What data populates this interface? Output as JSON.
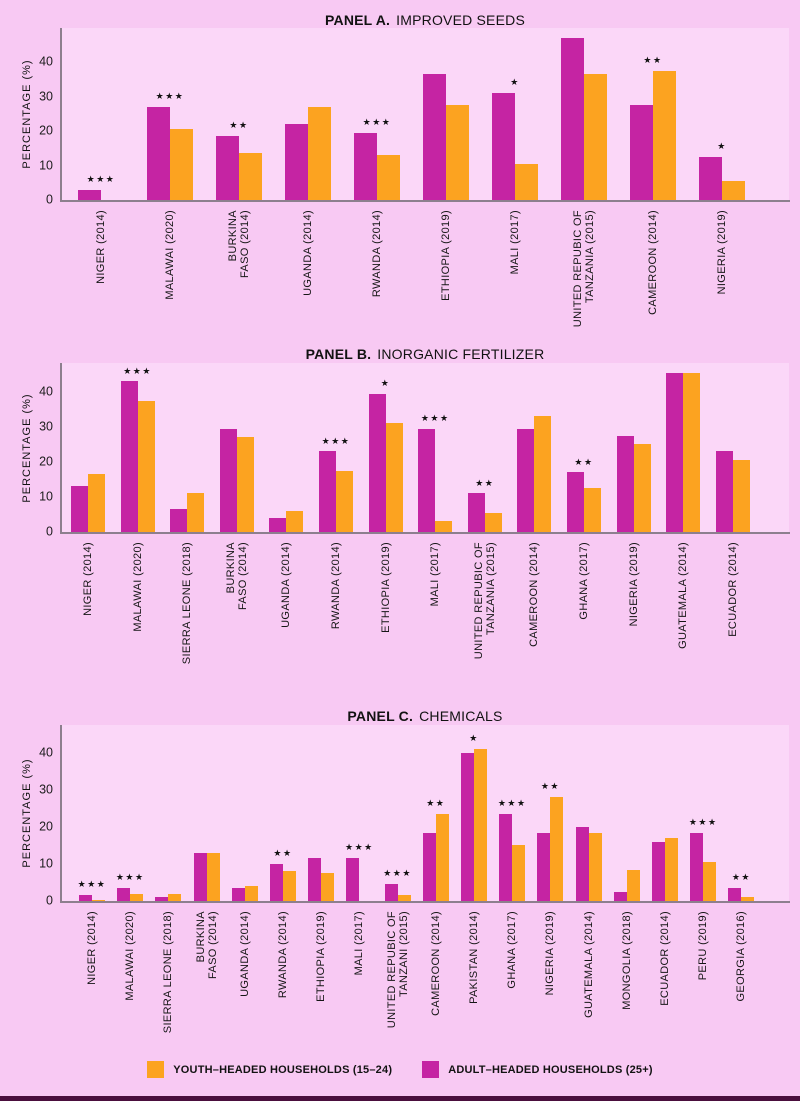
{
  "figure": {
    "background_color": "#f8c9f3",
    "plot_background_color": "#fbd7f8",
    "axis_color": "#8d7f8e",
    "bottom_band_color": "#4a0e3d",
    "bar_colors": {
      "adult": "#c524a3",
      "youth": "#fca320"
    },
    "ylabel": "PERCENTAGE (%)",
    "yticks": [
      "0",
      "10",
      "20",
      "30",
      "40"
    ]
  },
  "legend": {
    "items": [
      {
        "id": "youth",
        "label": "YOUTH–HEADED HOUSEHOLDS (15–24)",
        "color": "#fca320"
      },
      {
        "id": "adult",
        "label": "ADULT–HEADED HOUSEHOLDS (25+)",
        "color": "#c524a3"
      }
    ]
  },
  "chart_data": [
    {
      "type": "bar",
      "title_prefix": "PANEL A.",
      "title": "IMPROVED SEEDS",
      "ylabel": "PERCENTAGE (%)",
      "ylim": [
        0,
        50
      ],
      "grid": false,
      "legend_position": "none",
      "categories": [
        "NIGER (2014)",
        "MALAWAI (2020)",
        "BURKINA\nFASO (2014)",
        "UGANDA (2014)",
        "RWANDA (2014)",
        "ETHIOPIA (2019)",
        "MALI (2017)",
        "UNITED REPUBIC OF\nTANZANIA (2015)",
        "CAMEROON (2014)",
        "NIGERIA (2019)"
      ],
      "series": [
        {
          "name": "ADULT-HEADED HOUSEHOLDS (25+)",
          "color": "#c524a3",
          "values": [
            3,
            27,
            18.5,
            22,
            19.5,
            36.5,
            31,
            47,
            27.5,
            12.5
          ]
        },
        {
          "name": "YOUTH-HEADED HOUSEHOLDS (15-24)",
          "color": "#fca320",
          "values": [
            0,
            20.5,
            13.5,
            27,
            13,
            27.5,
            10.5,
            36.5,
            37.5,
            5.5
          ]
        }
      ],
      "significance": [
        "***",
        "***",
        "**",
        "",
        "***",
        "",
        "*",
        "",
        "**",
        "*"
      ]
    },
    {
      "type": "bar",
      "title_prefix": "PANEL B.",
      "title": "INORGANIC FERTILIZER",
      "ylabel": "PERCENTAGE (%)",
      "ylim": [
        0,
        48
      ],
      "grid": false,
      "legend_position": "none",
      "categories": [
        "NIGER (2014)",
        "MALAWAI (2020)",
        "SIERRA LEONE (2018)",
        "BURKINA\nFASO (2014)",
        "UGANDA (2014)",
        "RWANDA (2014)",
        "ETHIOPIA (2019)",
        "MALI (2017)",
        "UNITED REPUBIC OF\nTANZANIA (2015)",
        "CAMEROON (2014)",
        "GHANA (2017)",
        "NIGERIA (2019)",
        "GUATEMALA (2014)",
        "ECUADOR (2014)"
      ],
      "series": [
        {
          "name": "ADULT-HEADED HOUSEHOLDS (25+)",
          "color": "#c524a3",
          "values": [
            13,
            43,
            6.5,
            29.5,
            4,
            23,
            39.5,
            29.5,
            11,
            29.5,
            17,
            27.5,
            45.5,
            23
          ]
        },
        {
          "name": "YOUTH-HEADED HOUSEHOLDS (15-24)",
          "color": "#fca320",
          "values": [
            16.5,
            37.5,
            11,
            27,
            6,
            17.5,
            31,
            3,
            5.5,
            33,
            12.5,
            25,
            45.5,
            20.5
          ]
        }
      ],
      "significance": [
        "",
        "***",
        "",
        "",
        "",
        "***",
        "*",
        "***",
        "**",
        "",
        "**",
        "",
        "",
        ""
      ]
    },
    {
      "type": "bar",
      "title_prefix": "PANEL C.",
      "title": "CHEMICALS",
      "ylabel": "PERCENTAGE (%)",
      "ylim": [
        0,
        48
      ],
      "grid": false,
      "legend_position": "bottom",
      "categories": [
        "NIGER (2014)",
        "MALAWAI (2020)",
        "SIERRA LEONE (2018)",
        "BURKINA\nFASO (2014)",
        "UGANDA (2014)",
        "RWANDA (2014)",
        "ETHIOPIA (2019)",
        "MALI (2017)",
        "UNITED REPUBIC OF\nTANZANI (2015)",
        "CAMEROON (2014)",
        "PAKISTAN (2014)",
        "GHANA (2017)",
        "NIGERIA (2019)",
        "GUATEMALA (2014)",
        "MONGOLIA (2018)",
        "ECUADOR (2014)",
        "PERU (2019)",
        "GEORGIA (2016)"
      ],
      "series": [
        {
          "name": "ADULT-HEADED HOUSEHOLDS (25+)",
          "color": "#c524a3",
          "values": [
            1.5,
            3.5,
            1,
            13,
            3.5,
            10,
            11.5,
            11.5,
            4.5,
            18.5,
            40,
            23.5,
            18.5,
            20,
            2.5,
            16,
            18.5,
            3.5
          ]
        },
        {
          "name": "YOUTH-HEADED HOUSEHOLDS (15-24)",
          "color": "#fca320",
          "values": [
            0.2,
            2,
            1.8,
            13,
            4,
            8,
            7.5,
            0,
            1.5,
            23.5,
            41,
            15,
            28,
            18.5,
            8.5,
            17,
            10.5,
            1
          ]
        }
      ],
      "significance": [
        "***",
        "***",
        "",
        "",
        "",
        "**",
        "",
        "***",
        "***",
        "**",
        "*",
        "***",
        "**",
        "",
        "",
        "",
        "***",
        "**"
      ]
    }
  ]
}
